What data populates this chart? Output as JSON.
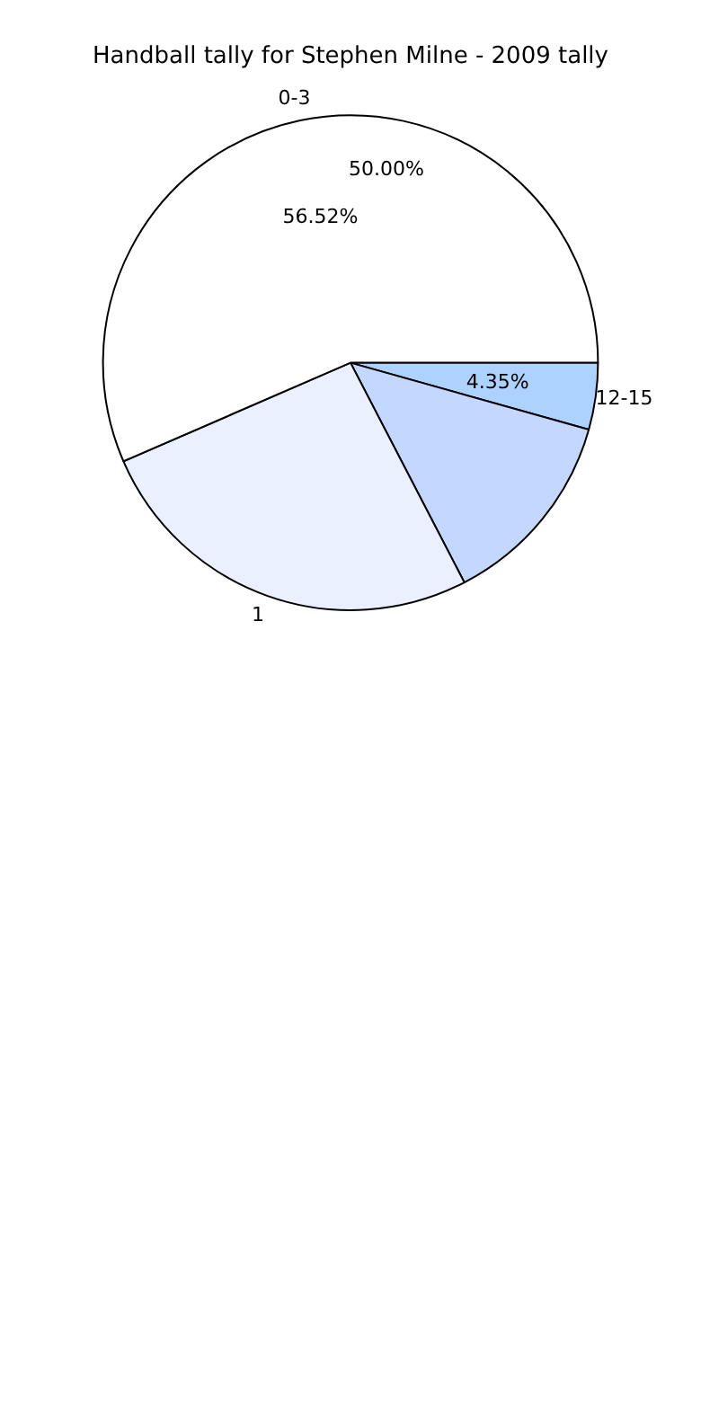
{
  "chart_data": {
    "type": "pie",
    "title": "Handball tally for Stephen Milne - 2009 tally",
    "categories": [
      "12-15",
      null,
      "1",
      "0-3"
    ],
    "values": [
      4.35,
      13.04,
      26.09,
      56.52
    ],
    "colors": [
      "#aed2ff",
      "#c3d7ff",
      "#eaf0ff",
      "#ffffff"
    ],
    "value_labels": [
      "4.35%",
      null,
      null,
      "56.52%"
    ],
    "annotations": [
      "50.00%"
    ],
    "legend": false
  }
}
